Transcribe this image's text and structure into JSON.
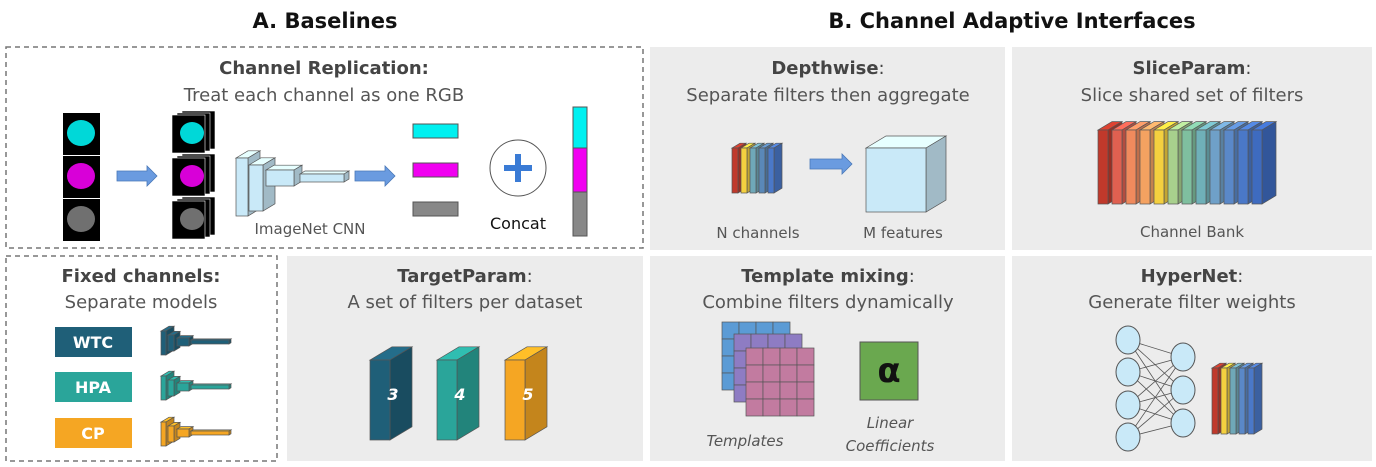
{
  "section_a": {
    "title": "A. Baselines",
    "replication": {
      "title": "Channel Replication:",
      "subtitle": "Treat each channel as one RGB",
      "cnn_label": "ImageNet CNN",
      "concat_label": "Concat"
    },
    "fixed": {
      "title": "Fixed channels:",
      "subtitle": "Separate models",
      "datasets": [
        "WTC",
        "HPA",
        "CP"
      ]
    },
    "target": {
      "title": "TargetParam",
      "colon": ":",
      "subtitle": "A set of filters per dataset",
      "filters": [
        "3",
        "4",
        "5"
      ]
    }
  },
  "section_b": {
    "title": "B. Channel Adaptive Interfaces",
    "depthwise": {
      "title": "Depthwise",
      "colon": ":",
      "subtitle": "Separate filters then aggregate",
      "n_label": "N channels",
      "m_label": "M features"
    },
    "slice": {
      "title": "SliceParam",
      "colon": ":",
      "subtitle": "Slice shared set of filters",
      "bank_label": "Channel Bank"
    },
    "template": {
      "title": "Template mixing",
      "colon": ":",
      "subtitle": "Combine filters dynamically",
      "templates_label": "Templates",
      "coeff_label_1": "Linear",
      "coeff_label_2": "Coefficients",
      "alpha": "α"
    },
    "hypernet": {
      "title": "HyperNet",
      "colon": ":",
      "subtitle": "Generate filter weights"
    }
  },
  "colors": {
    "cyan": "#00f0f0",
    "magenta": "#f000f0",
    "gray": "#888888",
    "wtc": "#1f5f78",
    "hpa": "#2aa59a",
    "cp": "#f5a623",
    "panel": "#ececec",
    "cnn": "#c9e9f8"
  }
}
